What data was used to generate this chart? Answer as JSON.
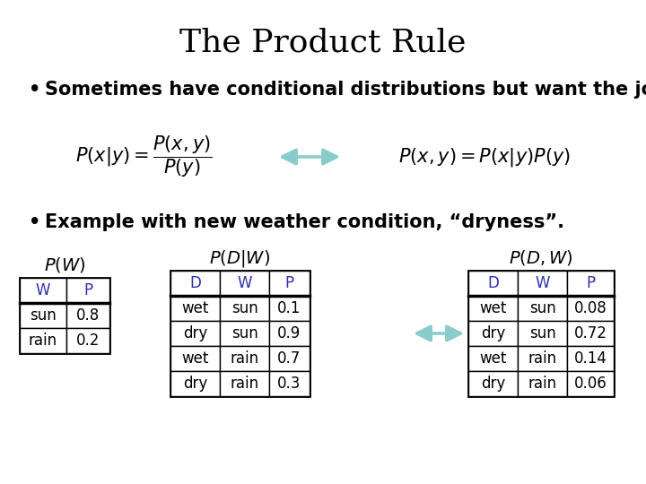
{
  "title": "The Product Rule",
  "bullet1": "Sometimes have conditional distributions but want the joint",
  "bullet2": "Example with new weather condition, “dryness”.",
  "formula_left": "$P(x|y) = \\dfrac{P(x,y)}{P(y)}$",
  "formula_right": "$P(x,y) = P(x|y)P(y)$",
  "pw_label": "$P(W)$",
  "pdw_label": "$P(D|W)$",
  "pdw_joint_label": "$P(D,W)$",
  "table_pw": {
    "headers": [
      "W",
      "P"
    ],
    "rows": [
      [
        "sun",
        "0.8"
      ],
      [
        "rain",
        "0.2"
      ]
    ]
  },
  "table_pdw": {
    "headers": [
      "D",
      "W",
      "P"
    ],
    "rows": [
      [
        "wet",
        "sun",
        "0.1"
      ],
      [
        "dry",
        "sun",
        "0.9"
      ],
      [
        "wet",
        "rain",
        "0.7"
      ],
      [
        "dry",
        "rain",
        "0.3"
      ]
    ]
  },
  "table_joint": {
    "headers": [
      "D",
      "W",
      "P"
    ],
    "rows": [
      [
        "wet",
        "sun",
        "0.08"
      ],
      [
        "dry",
        "sun",
        "0.72"
      ],
      [
        "wet",
        "rain",
        "0.14"
      ],
      [
        "dry",
        "rain",
        "0.06"
      ]
    ]
  },
  "header_color": "#3030aa",
  "table_border_color": "#000000",
  "arrow_color": "#88cccc",
  "background_color": "#ffffff",
  "title_fontsize": 26,
  "bullet_fontsize": 15,
  "formula_fontsize": 15,
  "label_fontsize": 14,
  "table_fontsize": 12
}
